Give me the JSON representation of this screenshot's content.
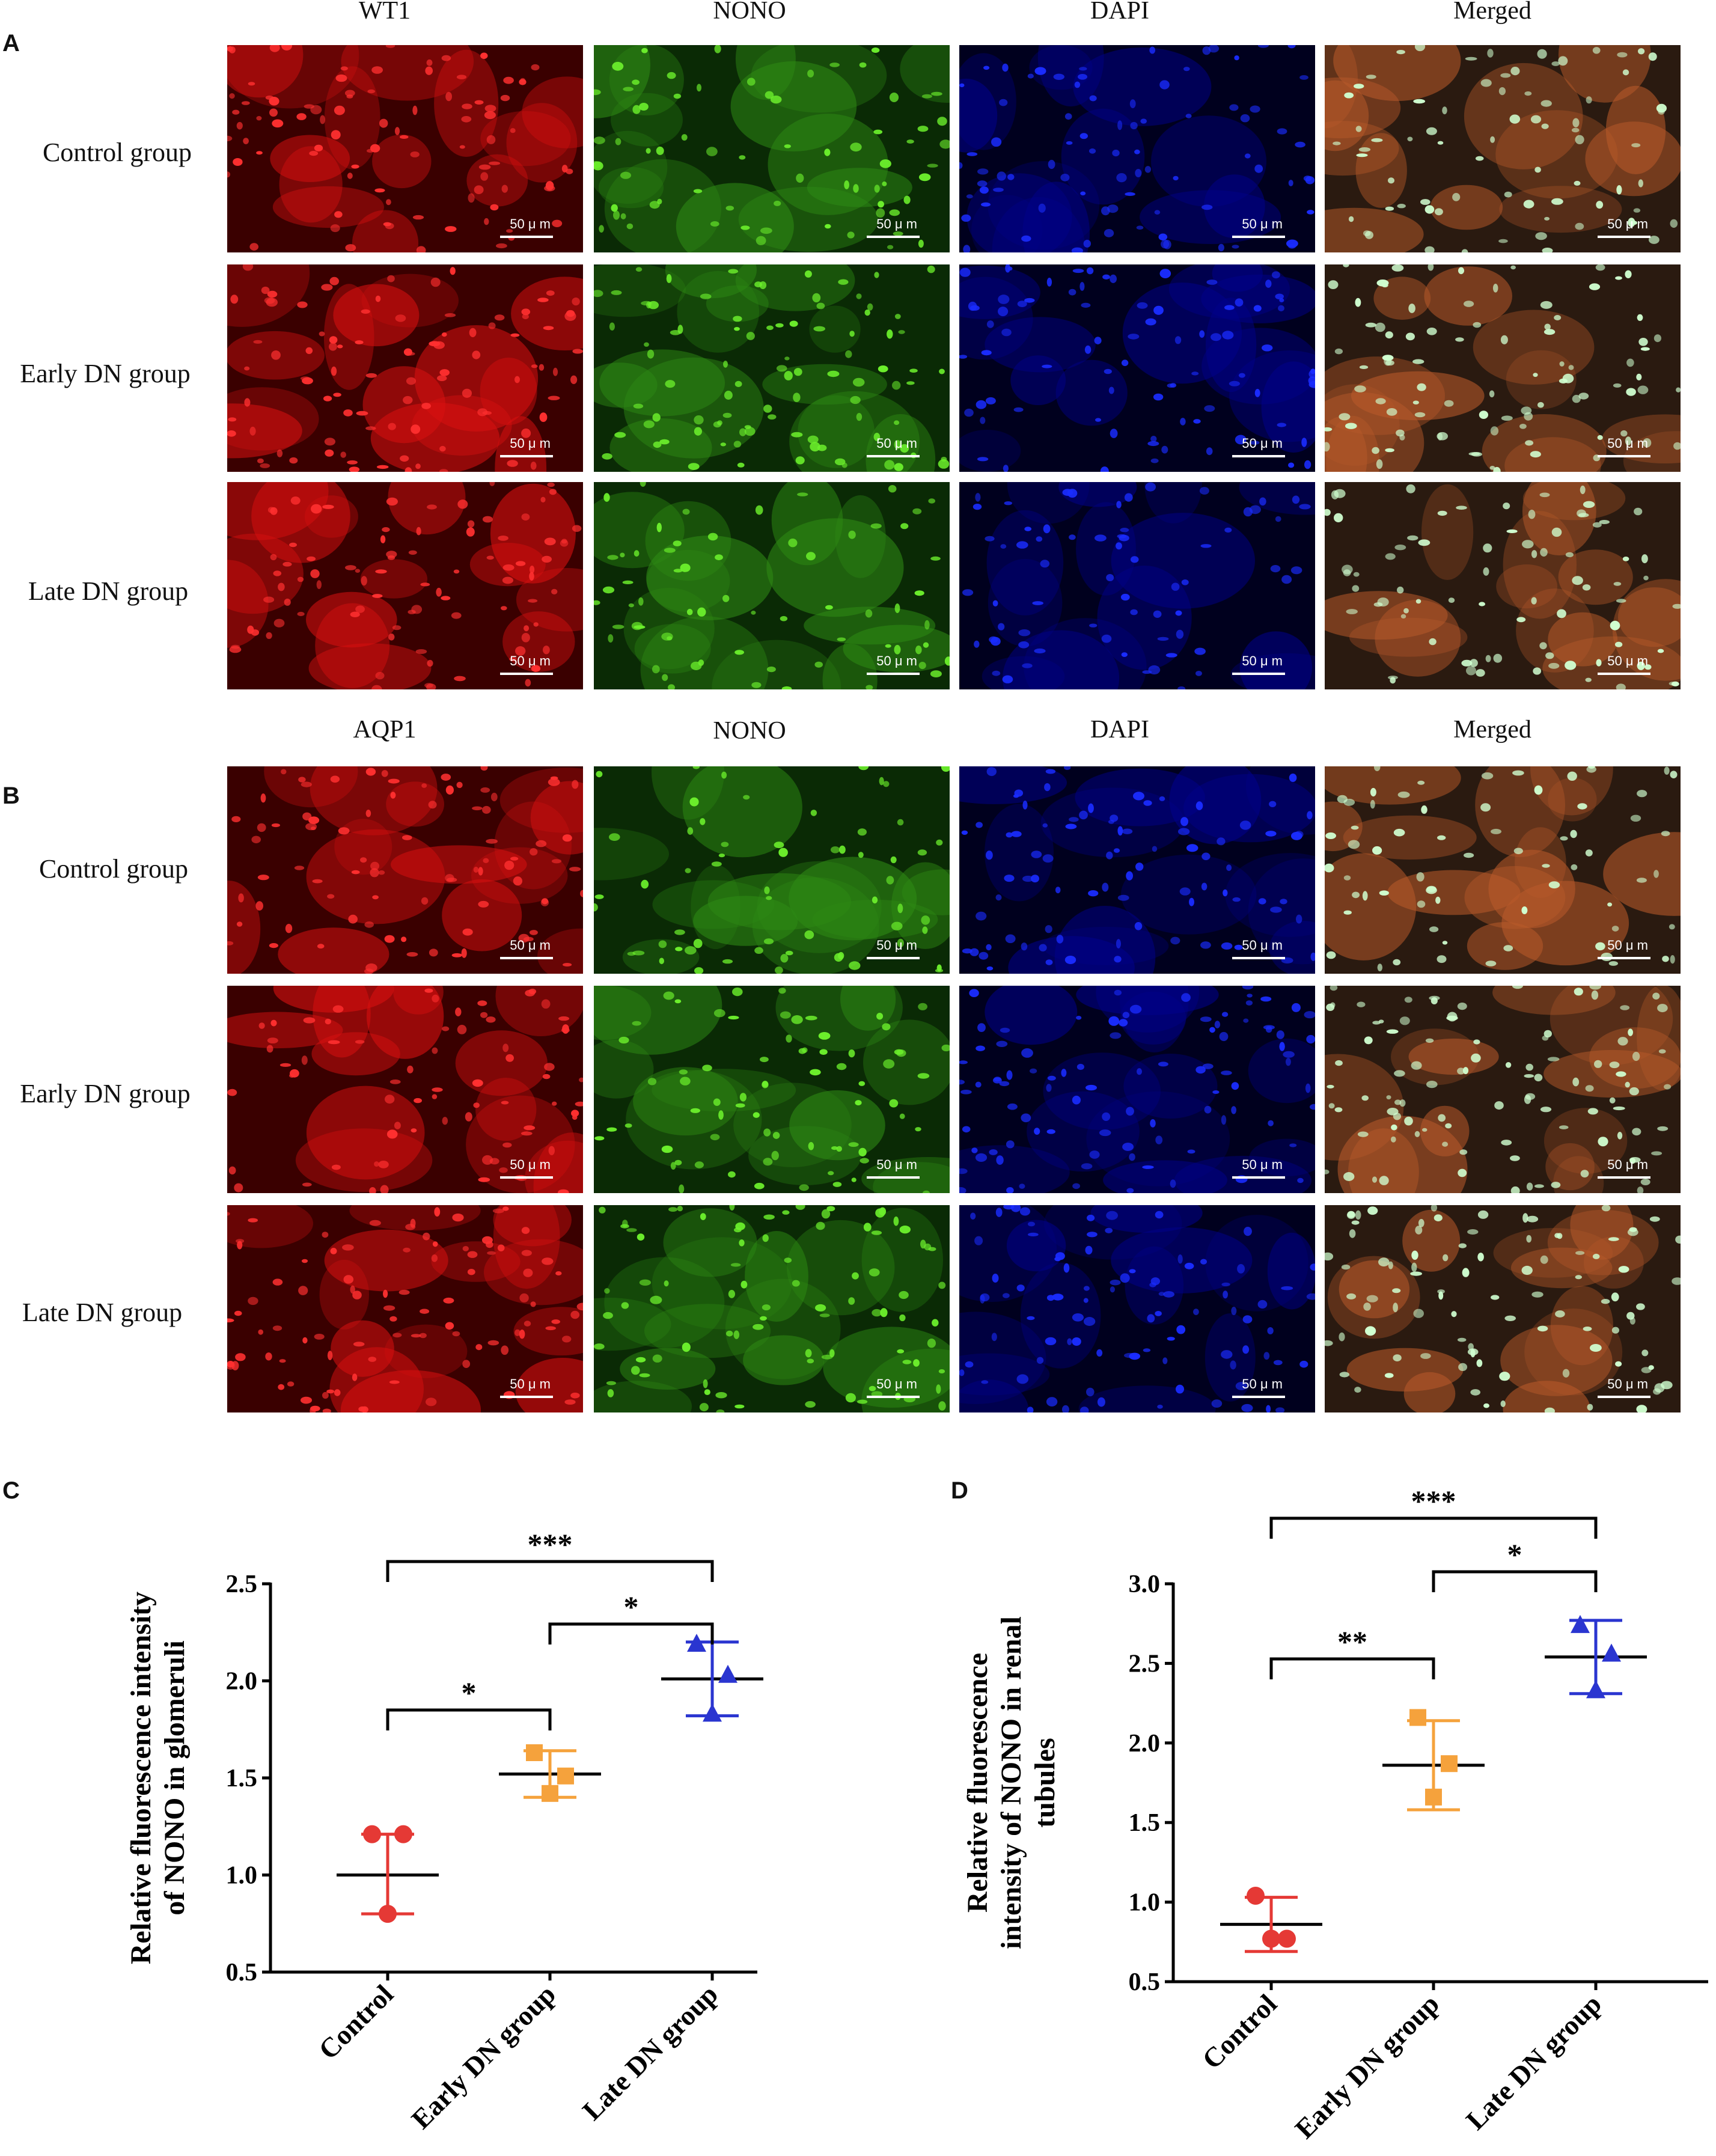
{
  "panels": {
    "A": {
      "letter": "A",
      "columns": [
        "WT1",
        "NONO",
        "DAPI",
        "Merged"
      ],
      "rows": [
        "Control group",
        "Early DN group",
        "Late DN group"
      ]
    },
    "B": {
      "letter": "B",
      "columns": [
        "AQP1",
        "NONO",
        "DAPI",
        "Merged"
      ],
      "rows": [
        "Control group",
        "Early DN group",
        "Late DN group"
      ]
    },
    "C": {
      "letter": "C"
    },
    "D": {
      "letter": "D"
    },
    "scale_label": "50 μ m"
  },
  "chart_data": [
    {
      "type": "scatter",
      "title": "",
      "xlabel": "",
      "ylabel": "Relative fluorescence intensity of NONO in glomeruli",
      "ylabel_lines": [
        "Relative fluorescence intensity",
        "of NONO in glomeruli"
      ],
      "categories": [
        "Control",
        "Early DN group",
        "Late DN group"
      ],
      "ylim": [
        0.5,
        2.5
      ],
      "yticks": [
        "0.5",
        "1.0",
        "1.5",
        "2.0",
        "2.5"
      ],
      "series": [
        {
          "category": "Control",
          "marker": "circle",
          "color": "#e53935",
          "points": [
            1.21,
            1.21,
            0.8
          ],
          "mean": 1.0,
          "sd_low": 0.8,
          "sd_high": 1.21
        },
        {
          "category": "Early DN group",
          "marker": "square",
          "color": "#f5a23c",
          "points": [
            1.63,
            1.51,
            1.42
          ],
          "mean": 1.52,
          "sd_low": 1.4,
          "sd_high": 1.64
        },
        {
          "category": "Late DN group",
          "marker": "triangle",
          "color": "#2a35d0",
          "points": [
            2.19,
            2.03,
            1.83
          ],
          "mean": 2.01,
          "sd_low": 1.82,
          "sd_high": 2.2
        }
      ],
      "brackets": [
        {
          "from": 0,
          "to": 1,
          "label": "*"
        },
        {
          "from": 1,
          "to": 2,
          "label": "*"
        },
        {
          "from": 0,
          "to": 2,
          "label": "***"
        }
      ]
    },
    {
      "type": "scatter",
      "title": "",
      "xlabel": "",
      "ylabel": "Relative fluorescence intensity of NONO in renal tubules",
      "ylabel_lines": [
        "Relative fluorescence",
        "intensity of NONO in renal",
        "tubules"
      ],
      "categories": [
        "Control",
        "Early DN group",
        "Late DN group"
      ],
      "ylim": [
        0.5,
        3.0
      ],
      "yticks": [
        "0.5",
        "1.0",
        "1.5",
        "2.0",
        "2.5",
        "3.0"
      ],
      "series": [
        {
          "category": "Control",
          "marker": "circle",
          "color": "#e53935",
          "points": [
            1.04,
            0.77,
            0.77
          ],
          "mean": 0.86,
          "sd_low": 0.69,
          "sd_high": 1.03
        },
        {
          "category": "Early DN group",
          "marker": "square",
          "color": "#f5a23c",
          "points": [
            2.16,
            1.87,
            1.66
          ],
          "mean": 1.86,
          "sd_low": 1.58,
          "sd_high": 2.14
        },
        {
          "category": "Late DN group",
          "marker": "triangle",
          "color": "#2a35d0",
          "points": [
            2.74,
            2.56,
            2.33
          ],
          "mean": 2.54,
          "sd_low": 2.31,
          "sd_high": 2.77
        }
      ],
      "brackets": [
        {
          "from": 0,
          "to": 1,
          "label": "**"
        },
        {
          "from": 1,
          "to": 2,
          "label": "*"
        },
        {
          "from": 0,
          "to": 2,
          "label": "***"
        }
      ]
    }
  ]
}
